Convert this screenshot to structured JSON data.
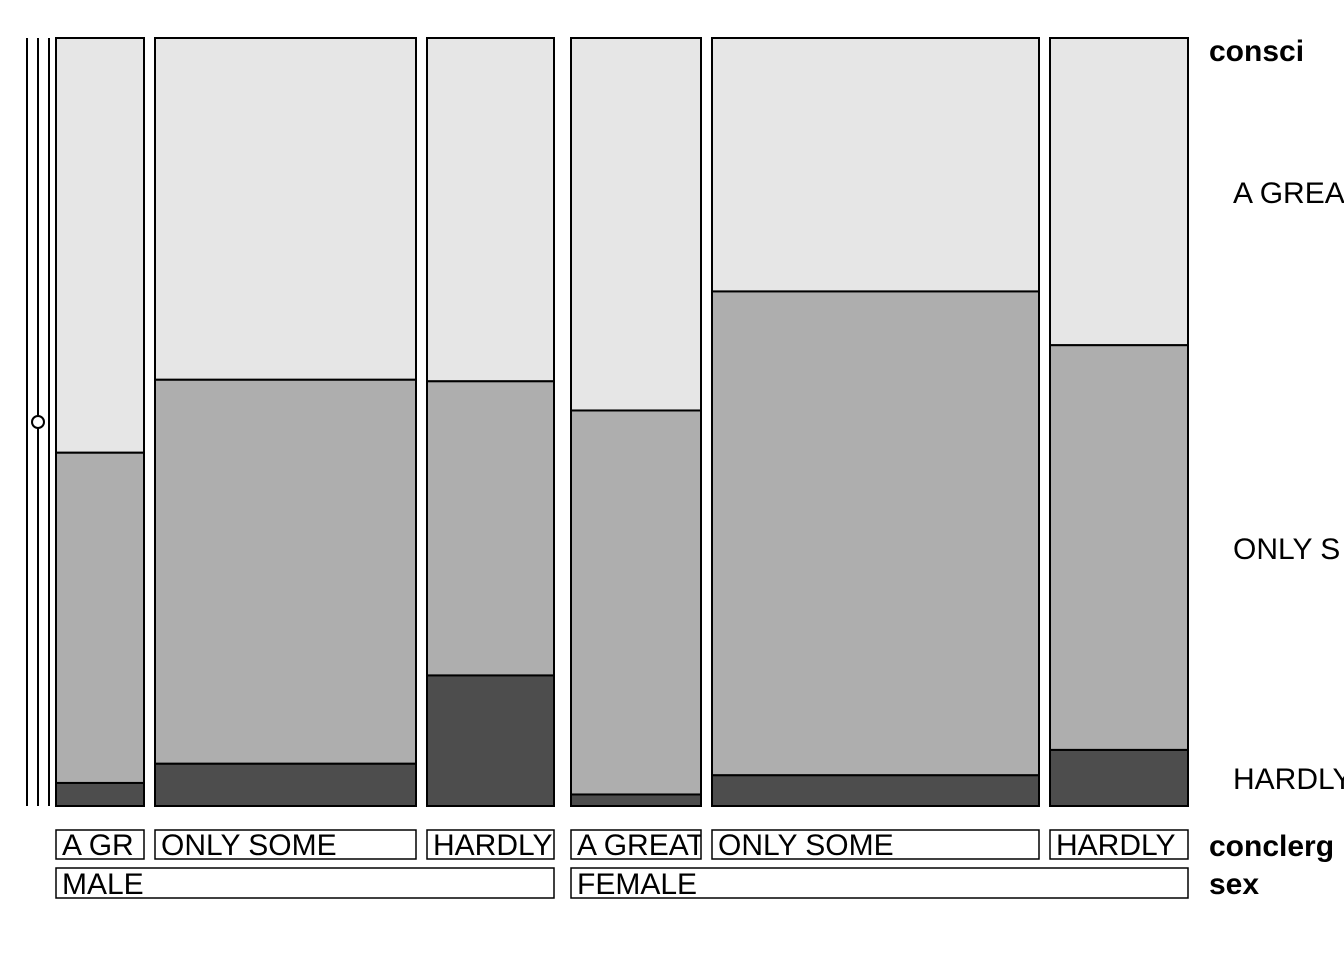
{
  "chart_data": {
    "type": "mosaic",
    "variables": {
      "y": "consci",
      "x_inner": "conclerg",
      "x_outer": "sex"
    },
    "y_levels": [
      "A GREAT DEAL",
      "ONLY SOME",
      "HARDLY ANY"
    ],
    "y_level_labels": [
      "A GREA",
      "ONLY S",
      "HARDLY"
    ],
    "colors": {
      "A GREAT DEAL": "#e6e6e6",
      "ONLY SOME": "#aeaeae",
      "HARDLY ANY": "#4d4d4d"
    },
    "groups": [
      {
        "sex": "MALE",
        "cells": [
          {
            "conclerg": "A GREAT DEAL",
            "label": "A GR",
            "width": 88,
            "proportions": {
              "A GREAT DEAL": 0.54,
              "ONLY SOME": 0.43,
              "HARDLY ANY": 0.03
            }
          },
          {
            "conclerg": "ONLY SOME",
            "label": "ONLY SOME",
            "width": 261,
            "proportions": {
              "A GREAT DEAL": 0.445,
              "ONLY SOME": 0.5,
              "HARDLY ANY": 0.055
            }
          },
          {
            "conclerg": "HARDLY ANY",
            "label": "HARDLY",
            "width": 127,
            "proportions": {
              "A GREAT DEAL": 0.447,
              "ONLY SOME": 0.383,
              "HARDLY ANY": 0.17
            }
          }
        ]
      },
      {
        "sex": "FEMALE",
        "cells": [
          {
            "conclerg": "A GREAT DEAL",
            "label": "A GREAT",
            "width": 130,
            "proportions": {
              "A GREAT DEAL": 0.485,
              "ONLY SOME": 0.5,
              "HARDLY ANY": 0.015
            }
          },
          {
            "conclerg": "ONLY SOME",
            "label": "ONLY SOME",
            "width": 327,
            "proportions": {
              "A GREAT DEAL": 0.33,
              "ONLY SOME": 0.63,
              "HARDLY ANY": 0.04
            }
          },
          {
            "conclerg": "HARDLY ANY",
            "label": "HARDLY",
            "width": 138,
            "proportions": {
              "A GREAT DEAL": 0.4,
              "ONLY SOME": 0.527,
              "HARDLY ANY": 0.073
            }
          }
        ]
      }
    ],
    "legend_placement": "right"
  }
}
